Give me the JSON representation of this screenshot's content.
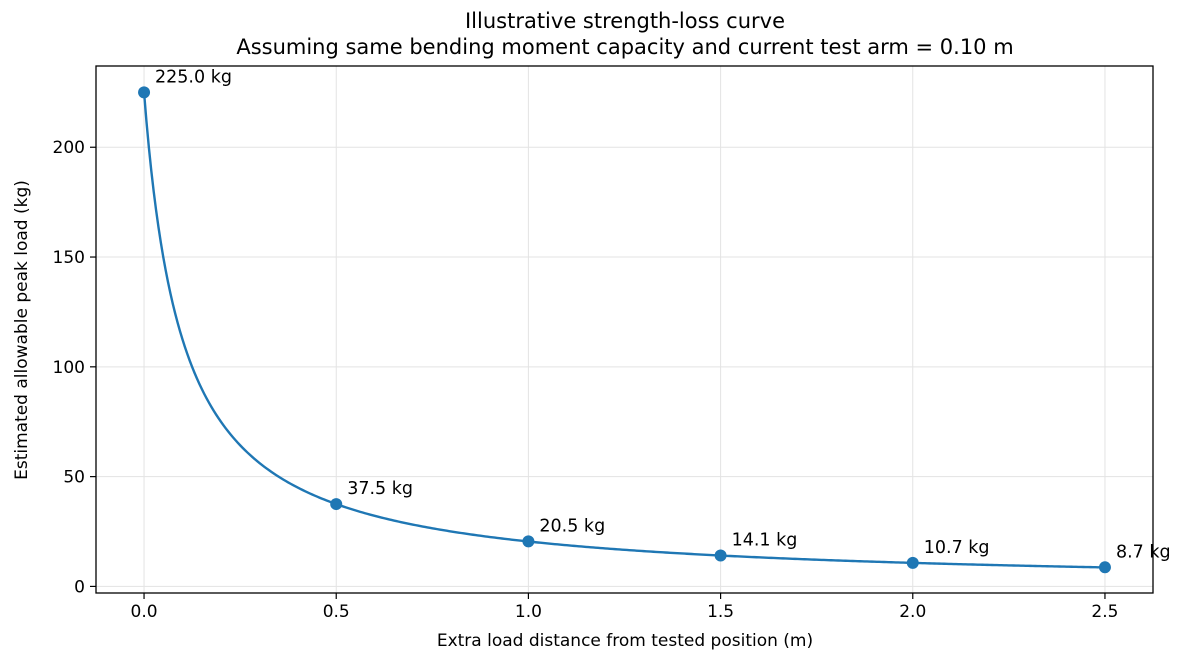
{
  "chart_data": {
    "type": "line",
    "title": "Illustrative strength-loss curve",
    "subtitle": "Assuming same bending moment capacity and current test arm = 0.10 m",
    "xlabel": "Extra load distance from tested position (m)",
    "ylabel": "Estimated allowable peak load (kg)",
    "xlim": [
      -0.125,
      2.625
    ],
    "ylim": [
      -3,
      237
    ],
    "xticks": [
      0.0,
      0.5,
      1.0,
      1.5,
      2.0,
      2.5
    ],
    "xtick_labels": [
      "0.0",
      "0.5",
      "1.0",
      "1.5",
      "2.0",
      "2.5"
    ],
    "yticks": [
      0,
      50,
      100,
      150,
      200
    ],
    "ytick_labels": [
      "0",
      "50",
      "100",
      "150",
      "200"
    ],
    "grid": true,
    "curve": {
      "formula": "y = 22.5 / (0.10 + x)",
      "x_range": [
        0.0,
        2.5
      ]
    },
    "points": [
      {
        "x": 0.0,
        "y": 225.0,
        "label": "225.0 kg"
      },
      {
        "x": 0.5,
        "y": 37.5,
        "label": "37.5 kg"
      },
      {
        "x": 1.0,
        "y": 20.5,
        "label": "20.5 kg"
      },
      {
        "x": 1.5,
        "y": 14.1,
        "label": "14.1 kg"
      },
      {
        "x": 2.0,
        "y": 10.7,
        "label": "10.7 kg"
      },
      {
        "x": 2.5,
        "y": 8.7,
        "label": "8.7 kg"
      }
    ],
    "color": "#1f77b4"
  }
}
